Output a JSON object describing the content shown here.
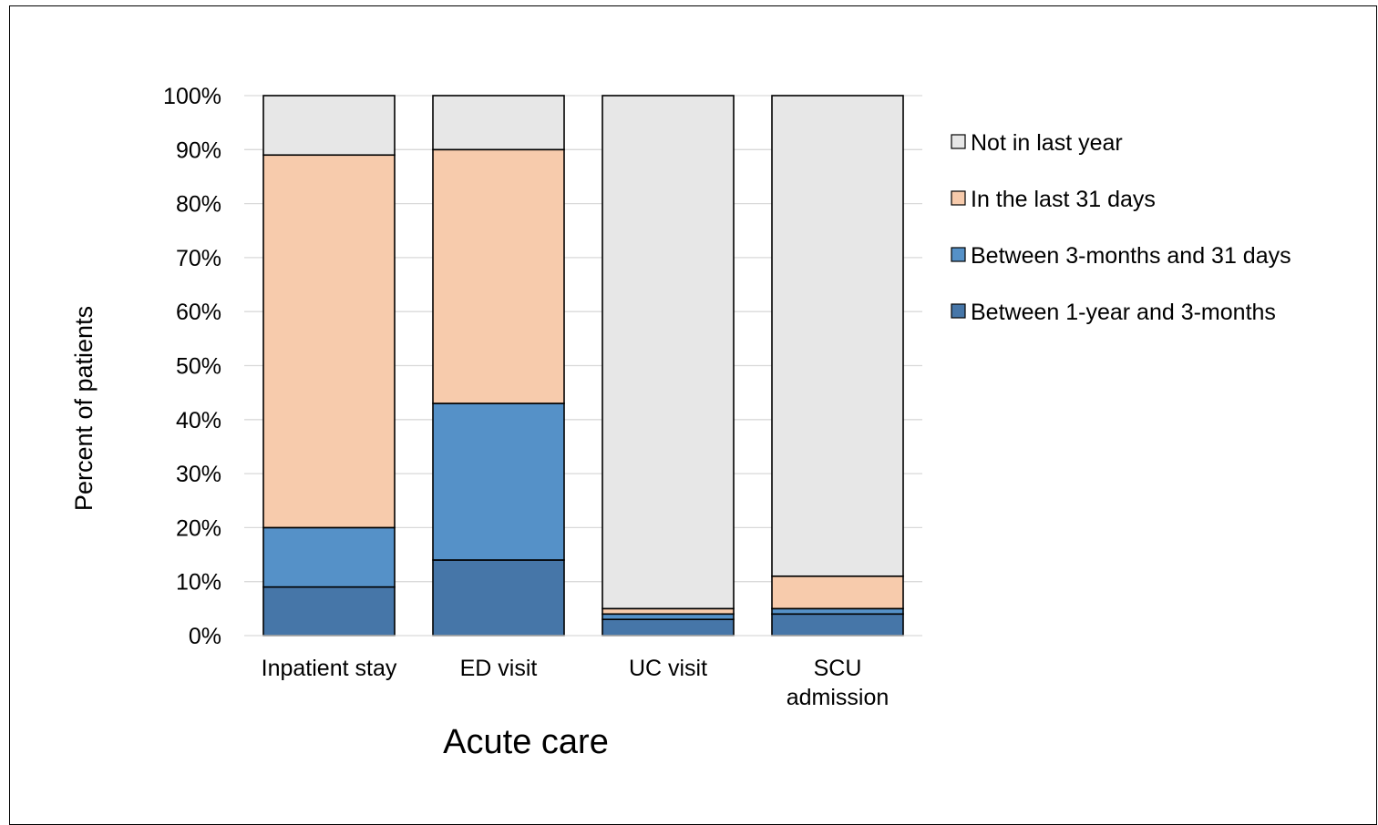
{
  "chart_data": {
    "type": "bar",
    "stacked": true,
    "title": "",
    "xlabel": "Acute care",
    "ylabel": "Percent of patients",
    "ylim": [
      0,
      100
    ],
    "y_ticks": [
      "0%",
      "10%",
      "20%",
      "30%",
      "40%",
      "50%",
      "60%",
      "70%",
      "80%",
      "90%",
      "100%"
    ],
    "categories": [
      [
        "Inpatient stay"
      ],
      [
        "ED visit"
      ],
      [
        "UC visit"
      ],
      [
        "SCU",
        "admission"
      ]
    ],
    "series": [
      {
        "name": "Between 1-year and 3-months",
        "color": "#4676A8",
        "values": [
          9,
          14,
          3,
          4
        ]
      },
      {
        "name": "Between 3-months and 31 days",
        "color": "#5591C8",
        "values": [
          11,
          29,
          1,
          1
        ]
      },
      {
        "name": "In the last 31 days",
        "color": "#F7CBAC",
        "values": [
          69,
          47,
          1,
          6
        ]
      },
      {
        "name": "Not in last year",
        "color": "#E7E7E7",
        "values": [
          11,
          10,
          95,
          89
        ]
      }
    ],
    "grid": true,
    "legend_position": "right"
  }
}
